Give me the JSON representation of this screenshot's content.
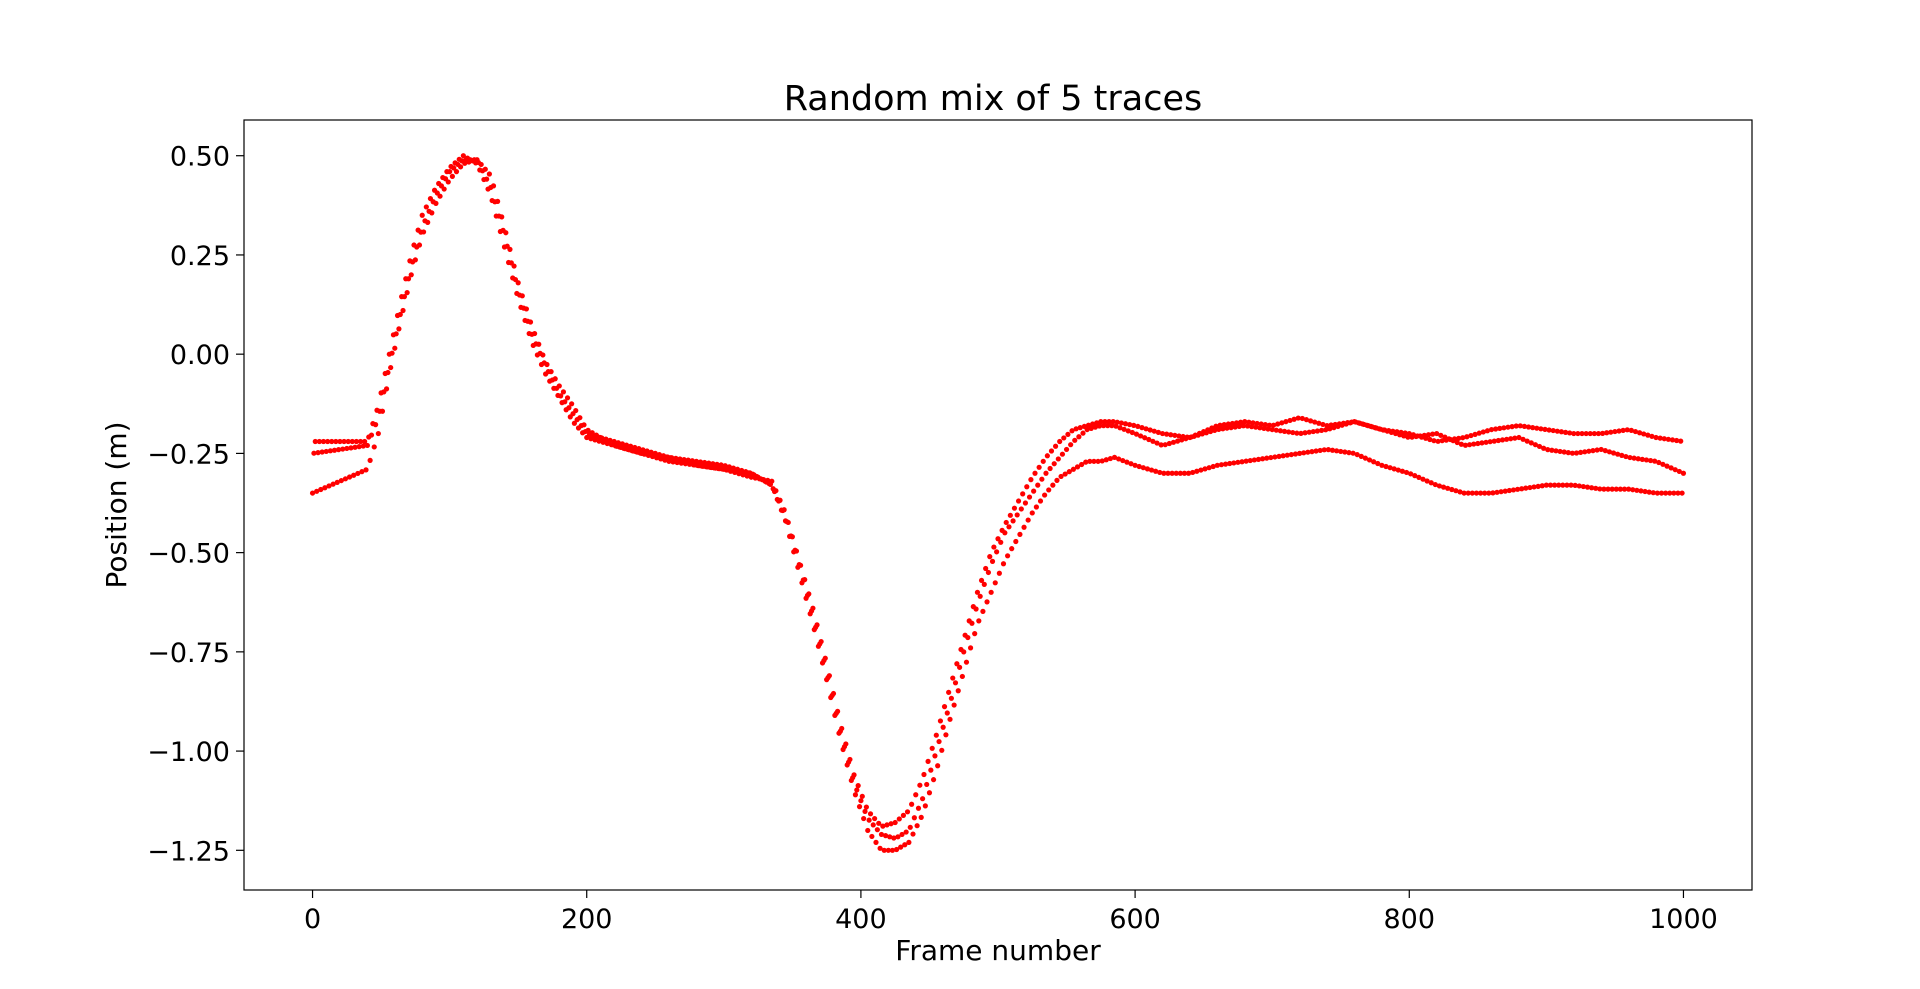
{
  "chart_data": {
    "type": "scatter",
    "title": "Random mix of 5 traces",
    "xlabel": "Frame number",
    "ylabel": "Position (m)",
    "xlim": [
      -50,
      1050
    ],
    "ylim": [
      -1.35,
      0.59
    ],
    "xticks": [
      0,
      200,
      400,
      600,
      800,
      1000
    ],
    "xtick_labels": [
      "0",
      "200",
      "400",
      "600",
      "800",
      "1000"
    ],
    "yticks": [
      0.5,
      0.25,
      0.0,
      -0.25,
      -0.5,
      -0.75,
      -1.0,
      -1.25
    ],
    "ytick_labels": [
      "0.50",
      "0.25",
      "0.00",
      "−0.25",
      "−0.50",
      "−0.75",
      "−1.00",
      "−1.25"
    ],
    "grid": false,
    "legend": "none",
    "marker_color": "#ff0000",
    "series": [
      {
        "x": [
          0,
          40,
          48,
          56,
          64,
          72,
          80,
          90,
          100,
          110,
          120,
          130,
          140,
          150,
          160,
          170,
          180,
          190,
          200,
          220,
          240,
          260,
          280,
          300,
          320,
          335,
          345,
          355,
          365,
          375,
          385,
          395,
          405,
          415,
          425,
          435,
          445,
          455,
          465,
          475,
          485,
          495,
          505,
          515,
          525,
          535,
          545,
          555,
          565,
          575,
          585,
          600,
          620,
          640,
          660,
          680,
          700,
          720,
          740,
          760,
          780,
          800,
          820,
          840,
          860,
          880,
          900,
          920,
          940,
          960,
          980,
          1000
        ],
        "y": [
          -0.35,
          -0.29,
          -0.2,
          -0.05,
          0.08,
          0.2,
          0.3,
          0.38,
          0.44,
          0.48,
          0.49,
          0.45,
          0.32,
          0.18,
          0.07,
          -0.02,
          -0.08,
          -0.13,
          -0.19,
          -0.23,
          -0.25,
          -0.26,
          -0.28,
          -0.29,
          -0.3,
          -0.33,
          -0.42,
          -0.55,
          -0.68,
          -0.82,
          -0.97,
          -1.1,
          -1.2,
          -1.25,
          -1.25,
          -1.23,
          -1.16,
          -1.05,
          -0.92,
          -0.8,
          -0.68,
          -0.6,
          -0.52,
          -0.46,
          -0.4,
          -0.35,
          -0.31,
          -0.29,
          -0.27,
          -0.27,
          -0.26,
          -0.28,
          -0.3,
          -0.3,
          -0.28,
          -0.27,
          -0.26,
          -0.25,
          -0.24,
          -0.25,
          -0.28,
          -0.3,
          -0.33,
          -0.35,
          -0.35,
          -0.34,
          -0.33,
          -0.33,
          -0.34,
          -0.34,
          -0.35,
          -0.35
        ]
      },
      {
        "x": [
          0,
          40,
          48,
          56,
          64,
          72,
          80,
          90,
          100,
          110,
          120,
          130,
          140,
          150,
          160,
          170,
          180,
          190,
          200,
          220,
          240,
          260,
          280,
          300,
          320,
          335,
          345,
          355,
          365,
          375,
          385,
          395,
          405,
          415,
          425,
          435,
          445,
          455,
          465,
          475,
          485,
          495,
          505,
          515,
          525,
          535,
          545,
          555,
          565,
          575,
          585,
          600,
          620,
          640,
          660,
          680,
          700,
          720,
          740,
          760,
          780,
          800,
          820,
          840,
          860,
          880,
          900,
          920,
          940,
          960,
          980,
          1000
        ],
        "y": [
          -0.25,
          -0.23,
          -0.16,
          -0.03,
          0.1,
          0.22,
          0.32,
          0.4,
          0.46,
          0.49,
          0.49,
          0.42,
          0.3,
          0.16,
          0.05,
          -0.03,
          -0.1,
          -0.15,
          -0.2,
          -0.22,
          -0.24,
          -0.26,
          -0.27,
          -0.28,
          -0.3,
          -0.33,
          -0.41,
          -0.53,
          -0.66,
          -0.8,
          -0.95,
          -1.08,
          -1.17,
          -1.21,
          -1.22,
          -1.2,
          -1.12,
          -1.0,
          -0.88,
          -0.75,
          -0.63,
          -0.53,
          -0.45,
          -0.4,
          -0.35,
          -0.3,
          -0.26,
          -0.22,
          -0.19,
          -0.18,
          -0.18,
          -0.2,
          -0.23,
          -0.21,
          -0.19,
          -0.18,
          -0.19,
          -0.2,
          -0.19,
          -0.17,
          -0.19,
          -0.21,
          -0.2,
          -0.23,
          -0.22,
          -0.21,
          -0.24,
          -0.25,
          -0.24,
          -0.26,
          -0.27,
          -0.3
        ]
      },
      {
        "x": [
          0,
          40,
          48,
          56,
          64,
          72,
          80,
          90,
          100,
          110,
          120,
          130,
          140,
          150,
          160,
          170,
          180,
          190,
          200,
          220,
          240,
          260,
          280,
          300,
          320,
          335,
          345,
          355,
          365,
          375,
          385,
          395,
          405,
          415,
          425,
          435,
          445,
          455,
          465,
          475,
          485,
          495,
          505,
          515,
          525,
          535,
          545,
          555,
          565,
          575,
          585,
          600,
          620,
          640,
          660,
          680,
          700,
          720,
          740,
          760,
          780,
          800,
          820,
          840,
          860,
          880,
          900,
          920,
          940,
          960,
          980,
          1000
        ],
        "y": [
          -0.22,
          -0.22,
          -0.13,
          0.0,
          0.13,
          0.25,
          0.35,
          0.42,
          0.47,
          0.5,
          0.48,
          0.4,
          0.27,
          0.14,
          0.03,
          -0.05,
          -0.11,
          -0.17,
          -0.21,
          -0.23,
          -0.25,
          -0.27,
          -0.28,
          -0.29,
          -0.31,
          -0.32,
          -0.4,
          -0.52,
          -0.64,
          -0.78,
          -0.93,
          -1.06,
          -1.15,
          -1.19,
          -1.18,
          -1.15,
          -1.07,
          -0.96,
          -0.84,
          -0.72,
          -0.6,
          -0.5,
          -0.43,
          -0.37,
          -0.31,
          -0.26,
          -0.22,
          -0.19,
          -0.18,
          -0.17,
          -0.17,
          -0.18,
          -0.2,
          -0.21,
          -0.18,
          -0.17,
          -0.18,
          -0.16,
          -0.18,
          -0.17,
          -0.19,
          -0.2,
          -0.22,
          -0.21,
          -0.19,
          -0.18,
          -0.19,
          -0.2,
          -0.2,
          -0.19,
          -0.21,
          -0.22
        ]
      }
    ]
  }
}
